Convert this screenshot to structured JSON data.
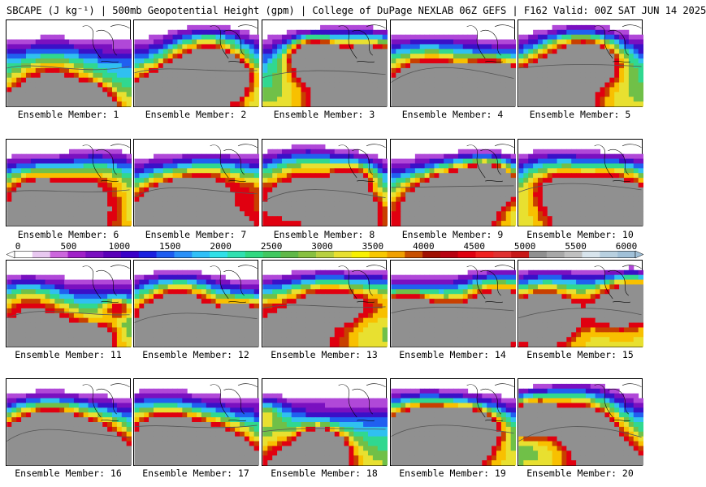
{
  "header": {
    "title": "SBCAPE (J kg⁻¹) | 500mb Geopotential Height (gpm) | College of DuPage NEXLAB 06Z GEFS | F162 Valid: 00Z SAT JUN 14 2025"
  },
  "colorbar": {
    "labels": [
      "0",
      "500",
      "1000",
      "1500",
      "2000",
      "2500",
      "3000",
      "3500",
      "4000",
      "4500",
      "5000",
      "5500",
      "6000"
    ],
    "min": 0,
    "max": 6000,
    "colors": [
      "#ffffff",
      "#e8c8f0",
      "#cc66dd",
      "#a020c8",
      "#7a10c0",
      "#5a00b8",
      "#3a00c8",
      "#1a20e0",
      "#1e5cf0",
      "#2a90f8",
      "#30c0f8",
      "#30e0e8",
      "#30e0b0",
      "#30d880",
      "#40c860",
      "#60b848",
      "#88c040",
      "#b8d040",
      "#e8e030",
      "#f8f000",
      "#f8c800",
      "#f0a000",
      "#c85000",
      "#a01000",
      "#b80010",
      "#e00010",
      "#f02020",
      "#e03030",
      "#c81818",
      "#909090",
      "#a8a8a8",
      "#c0c0c0",
      "#d8e4ec",
      "#b8d0e0",
      "#a0c0d8"
    ]
  },
  "members": [
    {
      "label": "Ensemble Member: 1"
    },
    {
      "label": "Ensemble Member: 2"
    },
    {
      "label": "Ensemble Member: 3"
    },
    {
      "label": "Ensemble Member: 4"
    },
    {
      "label": "Ensemble Member: 5"
    },
    {
      "label": "Ensemble Member: 6"
    },
    {
      "label": "Ensemble Member: 7"
    },
    {
      "label": "Ensemble Member: 8"
    },
    {
      "label": "Ensemble Member: 9"
    },
    {
      "label": "Ensemble Member: 10"
    },
    {
      "label": "Ensemble Member: 11"
    },
    {
      "label": "Ensemble Member: 12"
    },
    {
      "label": "Ensemble Member: 13"
    },
    {
      "label": "Ensemble Member: 14"
    },
    {
      "label": "Ensemble Member: 15"
    },
    {
      "label": "Ensemble Member: 16"
    },
    {
      "label": "Ensemble Member: 17"
    },
    {
      "label": "Ensemble Member: 18"
    },
    {
      "label": "Ensemble Member: 19"
    },
    {
      "label": "Ensemble Member: 20"
    }
  ]
}
